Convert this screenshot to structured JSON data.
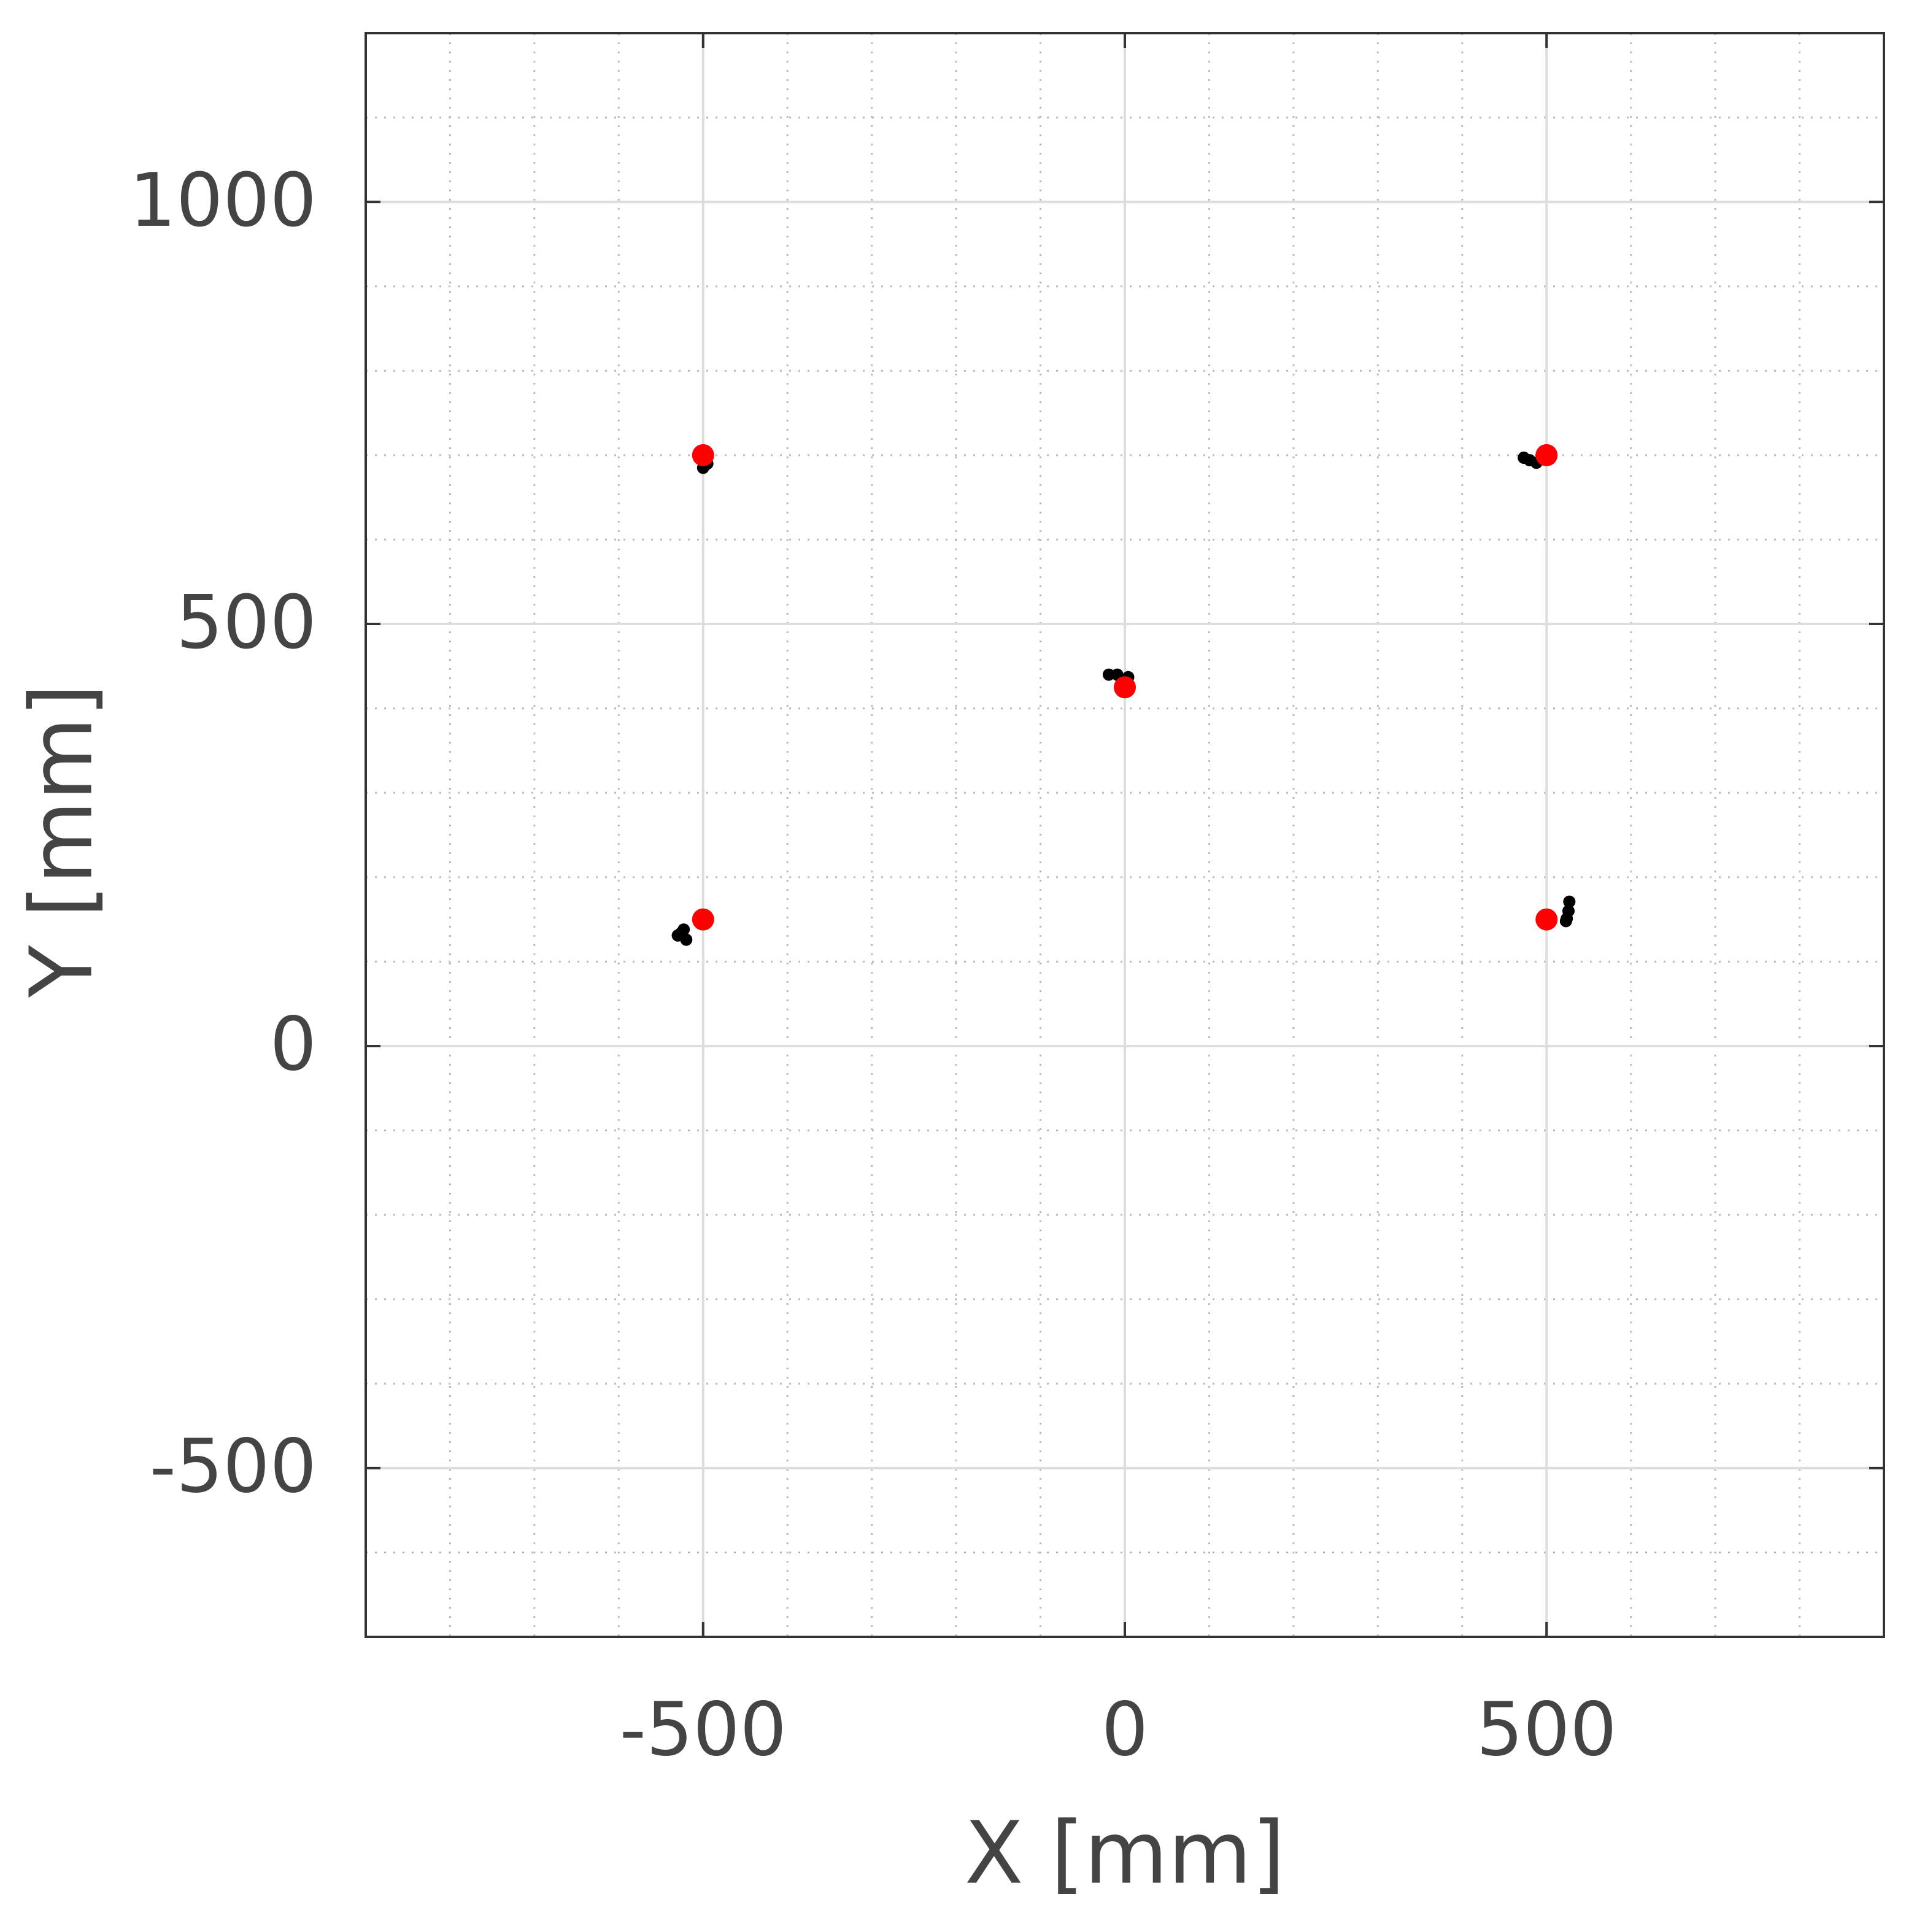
{
  "chart_data": {
    "type": "scatter",
    "xlabel": "X [mm]",
    "ylabel": "Y [mm]",
    "xlim": [
      -900,
      900
    ],
    "ylim": [
      -700,
      1200
    ],
    "xticks": [
      -500,
      0,
      500
    ],
    "yticks": [
      -500,
      0,
      500,
      1000
    ],
    "xminorticks": [
      -800,
      -700,
      -600,
      -400,
      -300,
      -200,
      -100,
      100,
      200,
      300,
      400,
      600,
      700,
      800
    ],
    "yminorticks": [
      -600,
      -400,
      -300,
      -200,
      -100,
      100,
      200,
      300,
      400,
      600,
      700,
      800,
      900,
      1100
    ],
    "grid": true,
    "series": [
      {
        "color": "#000000",
        "marker_size": 10,
        "x": [
          -498,
          -495,
          -500,
          473,
          480,
          488,
          -19,
          -9,
          4,
          -4,
          -530,
          -523,
          -520,
          -526,
          524,
          526,
          527,
          523
        ],
        "values": [
          688,
          690,
          685,
          697,
          694,
          691,
          440,
          440,
          437,
          434,
          131,
          138,
          126,
          134,
          151,
          160,
          171,
          148
        ]
      },
      {
        "color": "#ff0000",
        "marker_size": 18,
        "x": [
          -500,
          500,
          0,
          -500,
          500
        ],
        "values": [
          700,
          700,
          425,
          150,
          150
        ]
      }
    ]
  }
}
